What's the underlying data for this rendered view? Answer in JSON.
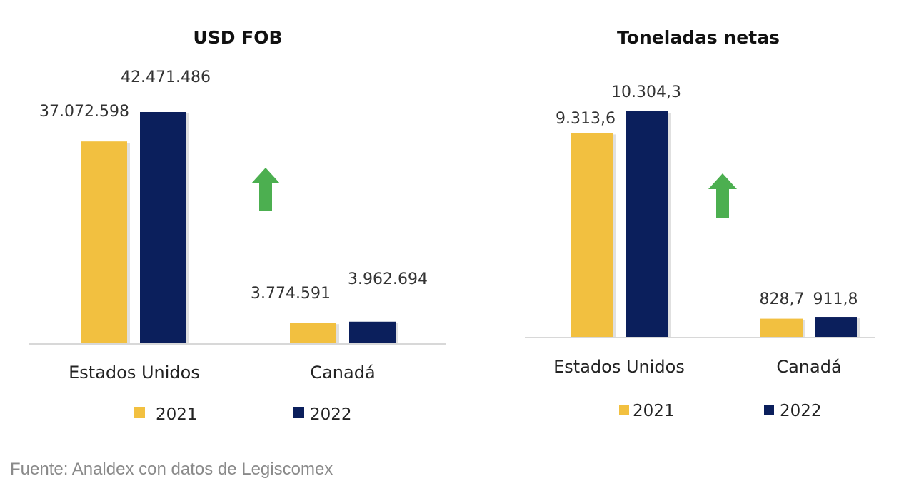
{
  "colors": {
    "2021": "#F2C040",
    "2022": "#0B1F5C",
    "arrow": "#4CAF50",
    "axis": "#d8d8d8"
  },
  "chart_data": [
    {
      "type": "bar",
      "title": "USD FOB",
      "categories": [
        "Estados Unidos",
        "Canadá"
      ],
      "series": [
        {
          "name": "2021",
          "values": [
            37072598,
            3774591
          ],
          "labels": [
            "37.072.598",
            "3.774.591"
          ]
        },
        {
          "name": "2022",
          "values": [
            42471486,
            3962694
          ],
          "labels": [
            "42.471.486",
            "3.962.694"
          ]
        }
      ],
      "annotation_icon": "green-up-arrow-icon",
      "legend": "bottom",
      "grid": false
    },
    {
      "type": "bar",
      "title": "Toneladas netas",
      "categories": [
        "Estados Unidos",
        "Canadá"
      ],
      "series": [
        {
          "name": "2021",
          "values": [
            9313.6,
            828.7
          ],
          "labels": [
            "9.313,6",
            "828,7"
          ]
        },
        {
          "name": "2022",
          "values": [
            10304.3,
            911.8
          ],
          "labels": [
            "10.304,3",
            "911,8"
          ]
        }
      ],
      "annotation_icon": "green-up-arrow-icon",
      "legend": "bottom",
      "grid": false
    }
  ],
  "footer": {
    "source": "Fuente: Analdex con datos de Legiscomex"
  }
}
